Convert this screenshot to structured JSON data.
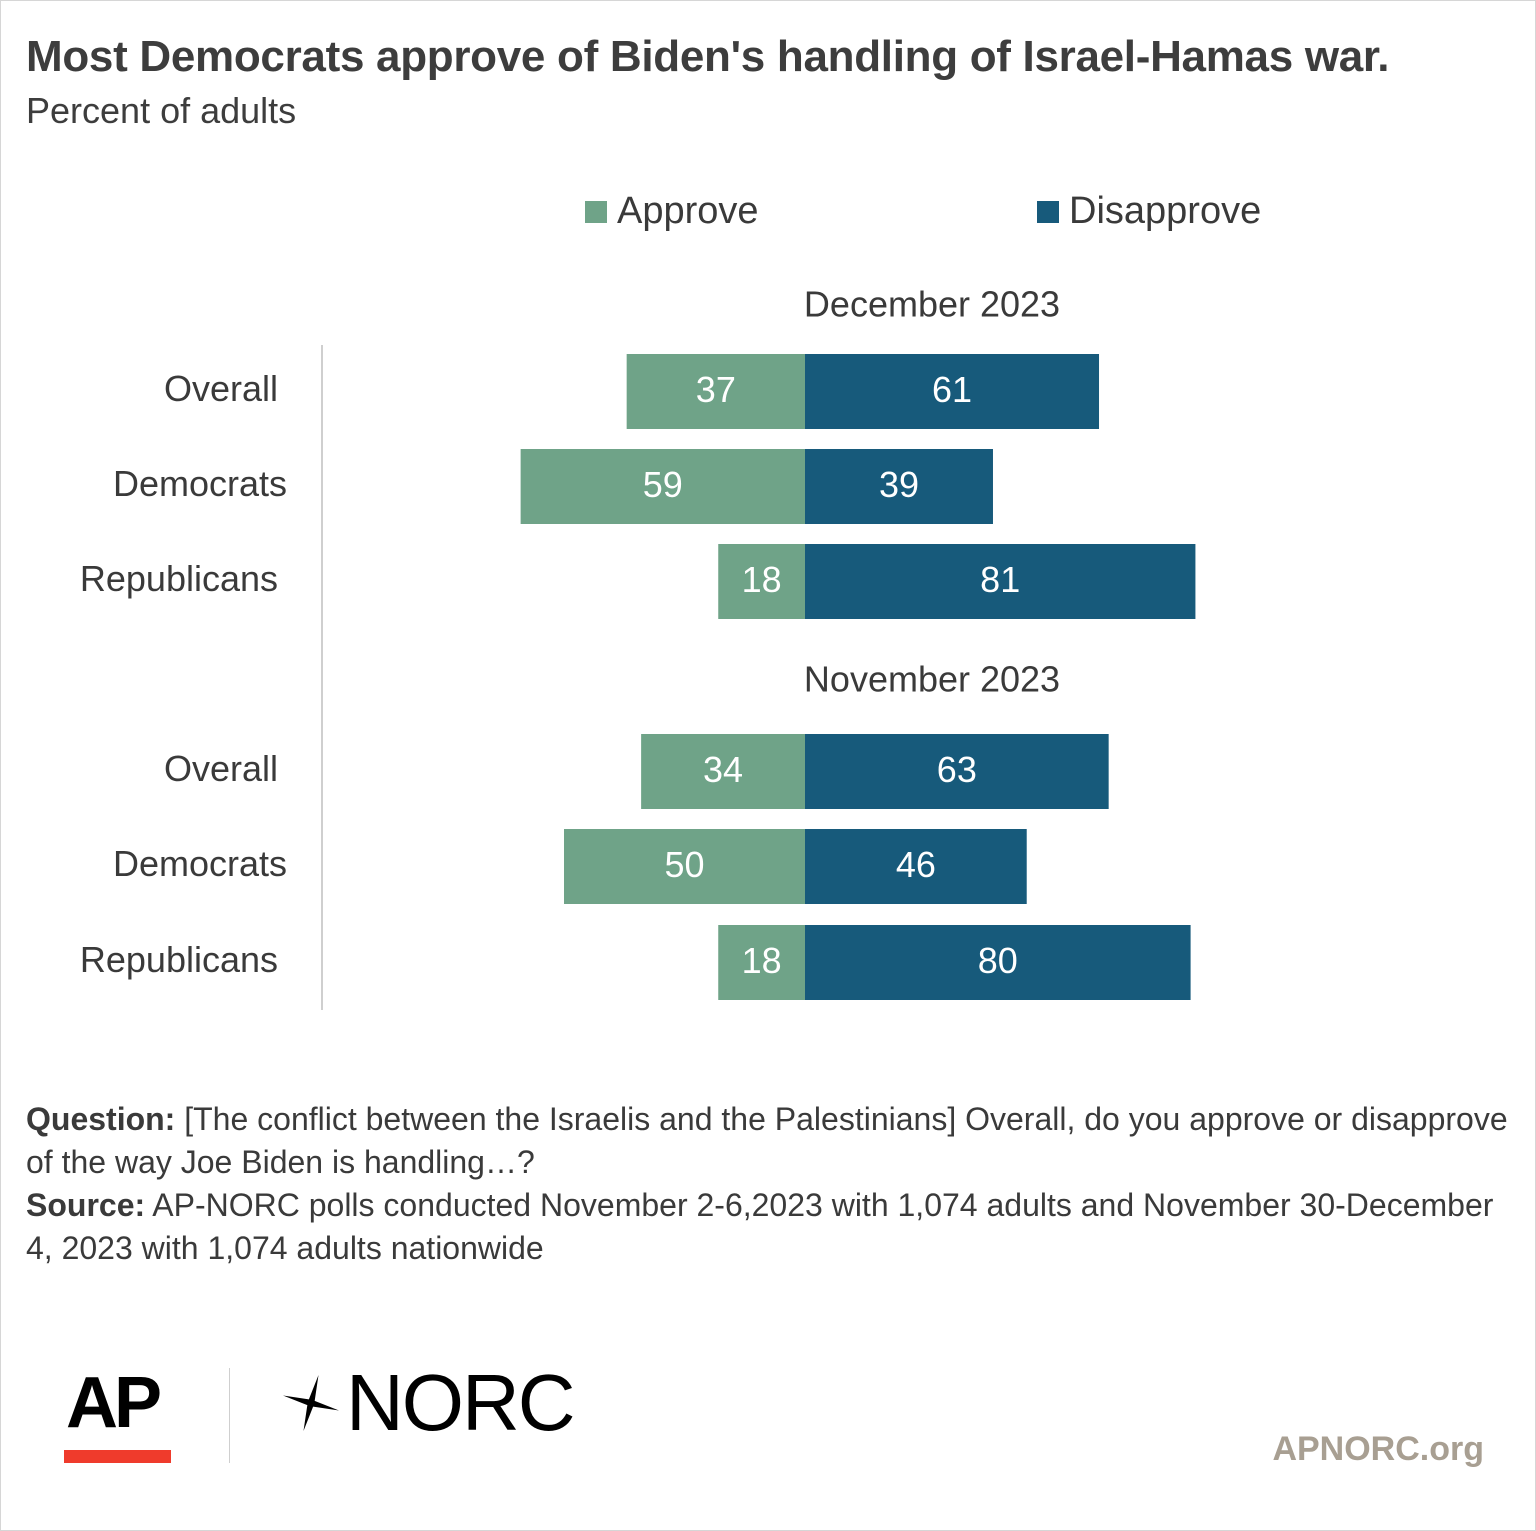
{
  "title": "Most Democrats approve of Biden's handling of Israel-Hamas war.",
  "subtitle": "Percent of adults",
  "legend": [
    {
      "label": "Approve",
      "color": "#6fa388"
    },
    {
      "label": "Disapprove",
      "color": "#175a7b"
    }
  ],
  "chart_data": {
    "type": "bar",
    "orientation": "horizontal-diverging",
    "panels": [
      {
        "title": "December 2023",
        "categories": [
          "Overall",
          "Democrats",
          "Republicans"
        ],
        "series": [
          {
            "name": "Approve",
            "values": [
              37,
              59,
              18
            ],
            "direction": "left"
          },
          {
            "name": "Disapprove",
            "values": [
              61,
              39,
              81
            ],
            "direction": "right"
          }
        ]
      },
      {
        "title": "November 2023",
        "categories": [
          "Overall",
          "Democrats",
          "Republicans"
        ],
        "series": [
          {
            "name": "Approve",
            "values": [
              34,
              50,
              18
            ],
            "direction": "left"
          },
          {
            "name": "Disapprove",
            "values": [
              63,
              46,
              80
            ],
            "direction": "right"
          }
        ]
      }
    ],
    "data_labels": true,
    "grid": false,
    "legend_position": "top"
  },
  "notes": {
    "question_label": "Question:",
    "question_text": " [The conflict between the Israelis and the Palestinians] Overall, do you approve or disapprove of the way Joe Biden is handling…?",
    "source_label": "Source:",
    "source_text": " AP-NORC polls conducted November 2-6,2023 with 1,074 adults and November 30-December 4, 2023 with 1,074 adults nationwide"
  },
  "footer": {
    "logo_ap": "AP",
    "logo_norc": "NORC",
    "site": "APNORC.org"
  }
}
